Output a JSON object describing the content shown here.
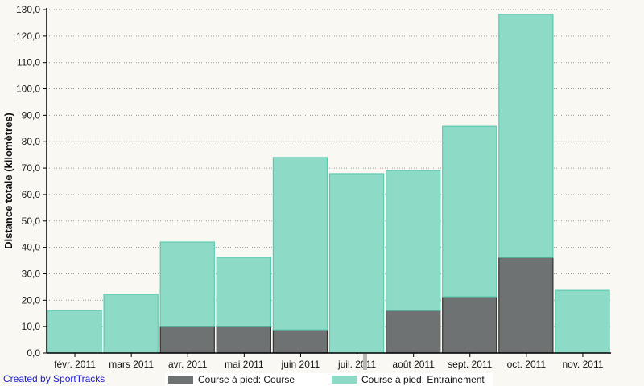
{
  "chart_data": {
    "type": "bar",
    "stacked": true,
    "title": "",
    "xlabel": "",
    "ylabel": "Distance totale (kilomètres)",
    "ylim": [
      0,
      130
    ],
    "yticks": [
      "0,0",
      "10,0",
      "20,0",
      "30,0",
      "40,0",
      "50,0",
      "60,0",
      "70,0",
      "80,0",
      "90,0",
      "100,0",
      "110,0",
      "120,0",
      "130,0"
    ],
    "grid": true,
    "legend_position": "bottom",
    "categories": [
      "févr. 2011",
      "mars 2011",
      "avr. 2011",
      "mai 2011",
      "juin 2011",
      "juil. 2011",
      "août 2011",
      "sept. 2011",
      "oct. 2011",
      "nov. 2011"
    ],
    "series": [
      {
        "name": "Course à pied: Course",
        "color": "#6f7272",
        "values": [
          0,
          0,
          10.0,
          10.0,
          8.8,
          0,
          16.1,
          21.3,
          36.2,
          0
        ]
      },
      {
        "name": "Course à pied: Entrainement",
        "color": "#8ddbc7",
        "values": [
          16.1,
          22.2,
          32.0,
          26.2,
          65.2,
          67.9,
          53.0,
          64.5,
          92.0,
          23.7
        ]
      }
    ],
    "totals": [
      16.1,
      22.2,
      42.0,
      36.2,
      74.0,
      67.9,
      69.1,
      85.8,
      128.2,
      23.7
    ]
  },
  "colors": {
    "background": "#faf8f3",
    "course": "#6f7272",
    "course_border": "#333333",
    "entrainement": "#8ddbc7",
    "entrainement_border": "#5ccab0",
    "grid": "#9a9a9a",
    "credit_link": "#2020d8"
  },
  "legend": {
    "items": [
      {
        "label": "Course à pied: Course"
      },
      {
        "label": "Course à pied: Entrainement"
      }
    ]
  },
  "footer": {
    "credit": "Created by SportTracks"
  }
}
